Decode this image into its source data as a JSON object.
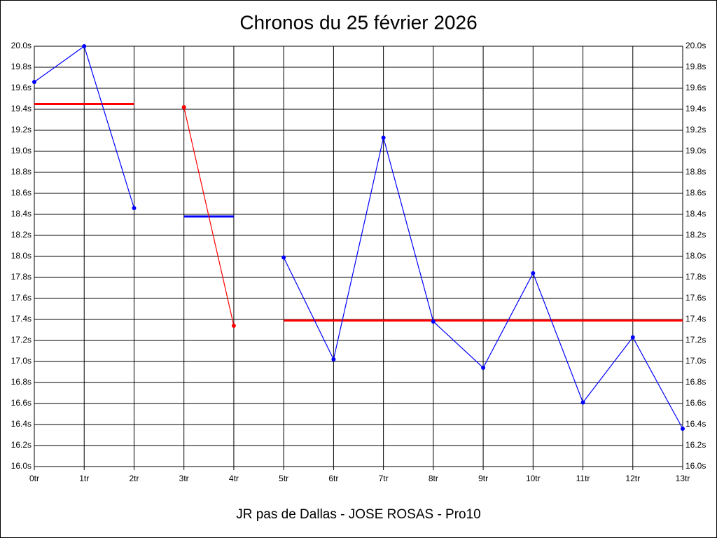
{
  "chart_data": {
    "type": "line",
    "title": "Chronos du 25 février 2026",
    "subtitle": "JR pas de Dallas - JOSE ROSAS - Pro10",
    "xlim": [
      0,
      13
    ],
    "xticks": [
      {
        "value": 0,
        "label": "0tr"
      },
      {
        "value": 1,
        "label": "1tr"
      },
      {
        "value": 2,
        "label": "2tr"
      },
      {
        "value": 3,
        "label": "3tr"
      },
      {
        "value": 4,
        "label": "4tr"
      },
      {
        "value": 5,
        "label": "5tr"
      },
      {
        "value": 6,
        "label": "6tr"
      },
      {
        "value": 7,
        "label": "7tr"
      },
      {
        "value": 8,
        "label": "8tr"
      },
      {
        "value": 9,
        "label": "9tr"
      },
      {
        "value": 10,
        "label": "10tr"
      },
      {
        "value": 11,
        "label": "11tr"
      },
      {
        "value": 12,
        "label": "12tr"
      },
      {
        "value": 13,
        "label": "13tr"
      }
    ],
    "ylim": [
      16.0,
      20.0
    ],
    "yticks": [
      {
        "value": 16.0,
        "label": "16.0s"
      },
      {
        "value": 16.2,
        "label": "16.2s"
      },
      {
        "value": 16.4,
        "label": "16.4s"
      },
      {
        "value": 16.6,
        "label": "16.6s"
      },
      {
        "value": 16.8,
        "label": "16.8s"
      },
      {
        "value": 17.0,
        "label": "17.0s"
      },
      {
        "value": 17.2,
        "label": "17.2s"
      },
      {
        "value": 17.4,
        "label": "17.4s"
      },
      {
        "value": 17.6,
        "label": "17.6s"
      },
      {
        "value": 17.8,
        "label": "17.8s"
      },
      {
        "value": 18.0,
        "label": "18.0s"
      },
      {
        "value": 18.2,
        "label": "18.2s"
      },
      {
        "value": 18.4,
        "label": "18.4s"
      },
      {
        "value": 18.6,
        "label": "18.6s"
      },
      {
        "value": 18.8,
        "label": "18.8s"
      },
      {
        "value": 19.0,
        "label": "19.0s"
      },
      {
        "value": 19.2,
        "label": "19.2s"
      },
      {
        "value": 19.4,
        "label": "19.4s"
      },
      {
        "value": 19.6,
        "label": "19.6s"
      },
      {
        "value": 19.8,
        "label": "19.8s"
      },
      {
        "value": 20.0,
        "label": "20.0s"
      }
    ],
    "grid": true,
    "series": [
      {
        "color": "#0000ff",
        "x": [
          0,
          1,
          2,
          3,
          4,
          5,
          6,
          7,
          8,
          9,
          10,
          11,
          12,
          13
        ],
        "values": [
          19.66,
          20.0,
          18.46,
          null,
          null,
          17.99,
          17.02,
          19.13,
          17.38,
          16.94,
          17.84,
          16.61,
          17.23,
          16.36
        ]
      },
      {
        "color": "#ff0000",
        "x": [
          3,
          4
        ],
        "values": [
          19.42,
          17.34
        ]
      }
    ],
    "reference_lines": [
      {
        "color": "#ff0000",
        "x": [
          0,
          2
        ],
        "value": 19.45
      },
      {
        "color": "#0000ff",
        "x": [
          3,
          4
        ],
        "value": 18.38
      },
      {
        "color": "#ff0000",
        "x": [
          5,
          13
        ],
        "value": 17.39
      }
    ]
  }
}
